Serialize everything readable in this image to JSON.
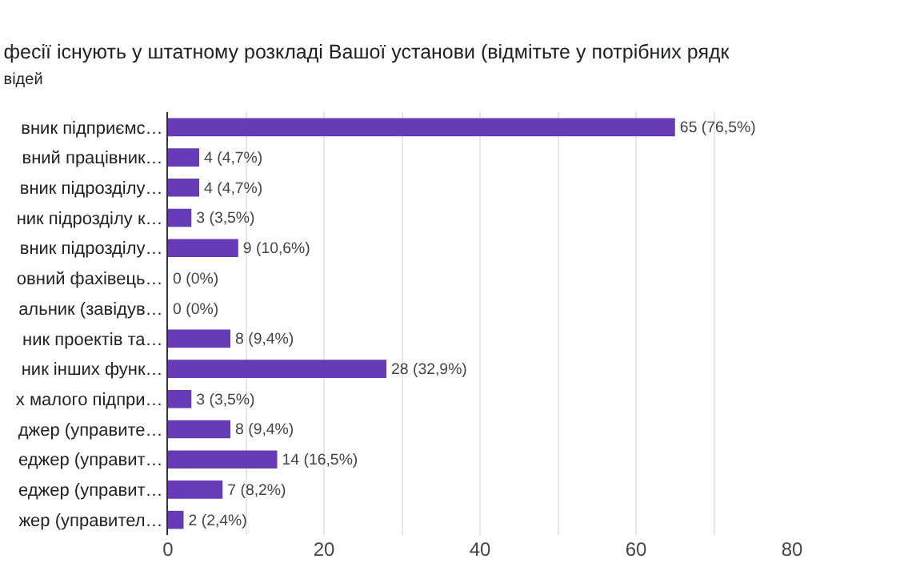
{
  "chart_data": {
    "type": "bar",
    "orientation": "horizontal",
    "title": "фесії існують у штатному розкладі Вашої установи (відмітьте у потрібних рядк",
    "subtitle": "відей",
    "categories": [
      "вник підприємс…",
      "вний працівник…",
      "вник підрозділу…",
      "ник підрозділу к…",
      "вник підрозділу…",
      "овний фахівець…",
      "альник (завідув…",
      "ник проектів та…",
      "ник інших функ…",
      "х малого підпри…",
      "джер (управите…",
      "еджер (управит…",
      "еджер (управит…",
      "жер (управител…"
    ],
    "values": [
      65,
      4,
      4,
      3,
      9,
      0,
      0,
      8,
      28,
      3,
      8,
      14,
      7,
      2
    ],
    "value_labels": [
      "65 (76,5%)",
      "4 (4,7%)",
      "4 (4,7%)",
      "3 (3,5%)",
      "9 (10,6%)",
      "0 (0%)",
      "0 (0%)",
      "8 (9,4%)",
      "28 (32,9%)",
      "3 (3,5%)",
      "8 (9,4%)",
      "14 (16,5%)",
      "7 (8,2%)",
      "2 (2,4%)"
    ],
    "color": "#673ab7",
    "xlim": [
      0,
      80
    ],
    "xticks": [
      0,
      {
        "value": 10,
        "label": null
      },
      20,
      {
        "value": 30,
        "label": null
      },
      40,
      {
        "value": 50,
        "label": null
      },
      60,
      {
        "value": 70,
        "label": null
      },
      80
    ],
    "grid": "x"
  }
}
